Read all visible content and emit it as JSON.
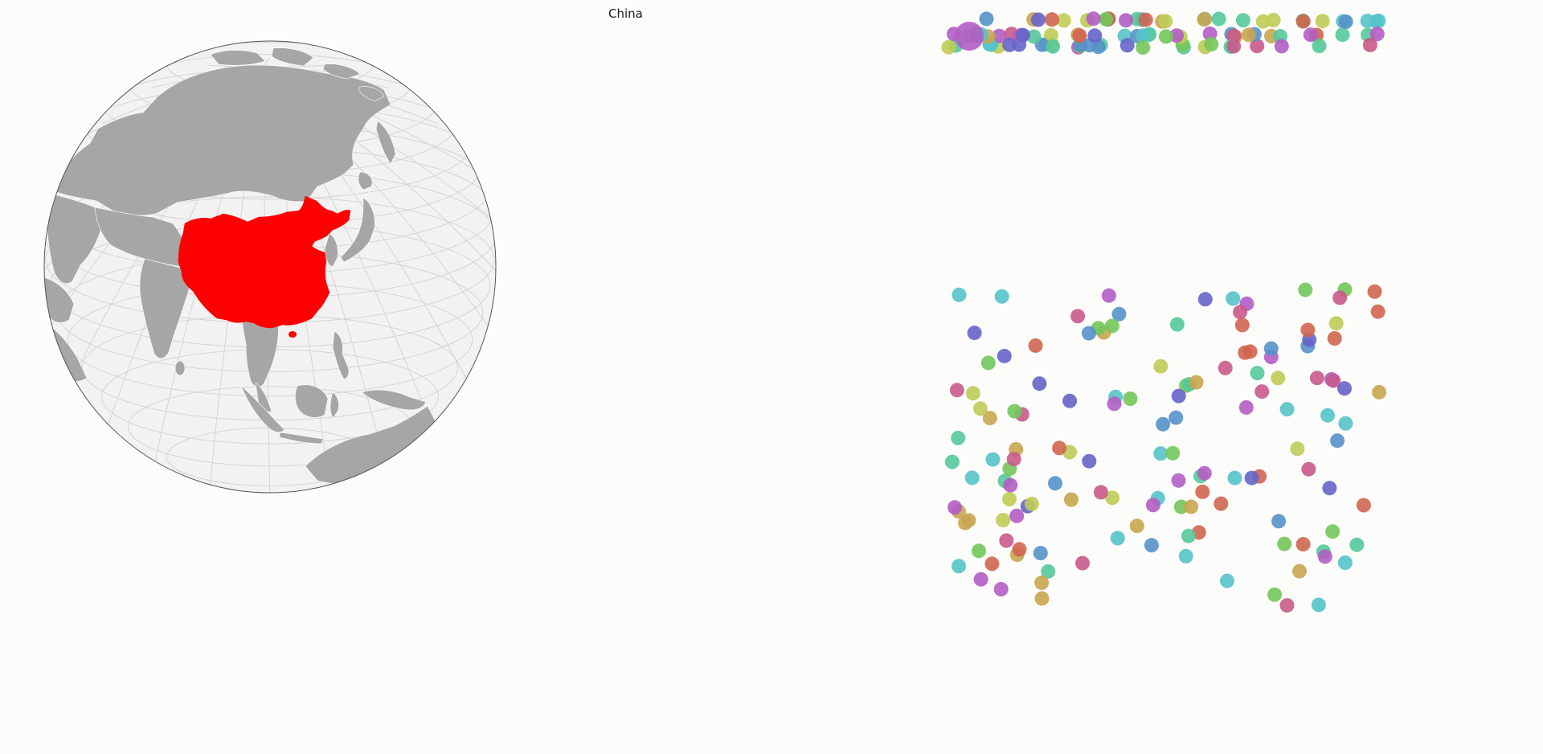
{
  "selected_country": {
    "name": "China",
    "highlight_color": "#ff0000"
  },
  "map": {
    "projection": "orthographic",
    "center": {
      "lon": 100,
      "lat": 32
    },
    "land_color": "#a6a6a6",
    "ocean_color": "#f2f2f2",
    "graticule_color": "#d4d4d4",
    "border_color": "#ffffff"
  },
  "bubble_palette": [
    "#b25dc4",
    "#c85a8a",
    "#d0654f",
    "#c9a550",
    "#bfcc55",
    "#73c75a",
    "#55c99a",
    "#55c3c9",
    "#5591c9",
    "#6565c9"
  ]
}
